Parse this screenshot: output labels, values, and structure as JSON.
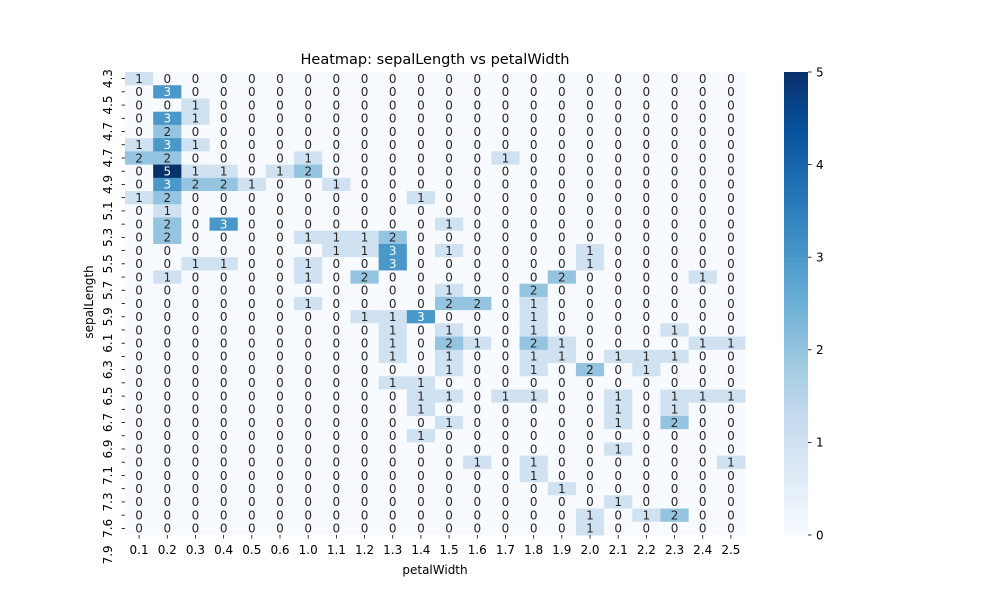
{
  "chart_data": {
    "type": "heatmap",
    "title": "Heatmap: sepalLength vs petalWidth",
    "xlabel": "petalWidth",
    "ylabel": "sepalLength",
    "x_categories": [
      "0.1",
      "0.2",
      "0.3",
      "0.4",
      "0.5",
      "0.6",
      "1.0",
      "1.1",
      "1.2",
      "1.3",
      "1.4",
      "1.5",
      "1.6",
      "1.7",
      "1.8",
      "1.9",
      "2.0",
      "2.1",
      "2.2",
      "2.3",
      "2.4",
      "2.5"
    ],
    "y_tick_labels": [
      "4.3",
      "4.5",
      "4.7",
      "4.7",
      "4.9",
      "5.1",
      "5.3",
      "5.5",
      "5.7",
      "5.9",
      "6.1",
      "6.3",
      "6.5",
      "6.7",
      "6.9",
      "7.1",
      "7.3",
      "7.6",
      "7.9"
    ],
    "values": [
      [
        1,
        0,
        0,
        0,
        0,
        0,
        0,
        0,
        0,
        0,
        0,
        0,
        0,
        0,
        0,
        0,
        0,
        0,
        0,
        0,
        0,
        0
      ],
      [
        0,
        3,
        0,
        0,
        0,
        0,
        0,
        0,
        0,
        0,
        0,
        0,
        0,
        0,
        0,
        0,
        0,
        0,
        0,
        0,
        0,
        0
      ],
      [
        0,
        0,
        1,
        0,
        0,
        0,
        0,
        0,
        0,
        0,
        0,
        0,
        0,
        0,
        0,
        0,
        0,
        0,
        0,
        0,
        0,
        0
      ],
      [
        0,
        3,
        1,
        0,
        0,
        0,
        0,
        0,
        0,
        0,
        0,
        0,
        0,
        0,
        0,
        0,
        0,
        0,
        0,
        0,
        0,
        0
      ],
      [
        0,
        2,
        0,
        0,
        0,
        0,
        0,
        0,
        0,
        0,
        0,
        0,
        0,
        0,
        0,
        0,
        0,
        0,
        0,
        0,
        0,
        0
      ],
      [
        1,
        3,
        1,
        0,
        0,
        0,
        0,
        0,
        0,
        0,
        0,
        0,
        0,
        0,
        0,
        0,
        0,
        0,
        0,
        0,
        0,
        0
      ],
      [
        2,
        2,
        0,
        0,
        0,
        0,
        1,
        0,
        0,
        0,
        0,
        0,
        0,
        1,
        0,
        0,
        0,
        0,
        0,
        0,
        0,
        0
      ],
      [
        0,
        5,
        1,
        1,
        0,
        1,
        2,
        0,
        0,
        0,
        0,
        0,
        0,
        0,
        0,
        0,
        0,
        0,
        0,
        0,
        0,
        0
      ],
      [
        0,
        3,
        2,
        2,
        1,
        0,
        0,
        1,
        0,
        0,
        0,
        0,
        0,
        0,
        0,
        0,
        0,
        0,
        0,
        0,
        0,
        0
      ],
      [
        1,
        2,
        0,
        0,
        0,
        0,
        0,
        0,
        0,
        0,
        1,
        0,
        0,
        0,
        0,
        0,
        0,
        0,
        0,
        0,
        0,
        0
      ],
      [
        0,
        1,
        0,
        0,
        0,
        0,
        0,
        0,
        0,
        0,
        0,
        0,
        0,
        0,
        0,
        0,
        0,
        0,
        0,
        0,
        0,
        0
      ],
      [
        0,
        2,
        0,
        3,
        0,
        0,
        0,
        0,
        0,
        0,
        0,
        1,
        0,
        0,
        0,
        0,
        0,
        0,
        0,
        0,
        0,
        0
      ],
      [
        0,
        2,
        0,
        0,
        0,
        0,
        1,
        1,
        1,
        2,
        0,
        0,
        0,
        0,
        0,
        0,
        0,
        0,
        0,
        0,
        0,
        0
      ],
      [
        0,
        0,
        0,
        0,
        0,
        0,
        0,
        1,
        1,
        3,
        0,
        1,
        0,
        0,
        0,
        0,
        1,
        0,
        0,
        0,
        0,
        0
      ],
      [
        0,
        0,
        1,
        1,
        0,
        0,
        1,
        0,
        0,
        3,
        0,
        0,
        0,
        0,
        0,
        0,
        1,
        0,
        0,
        0,
        0,
        0
      ],
      [
        0,
        1,
        0,
        0,
        0,
        0,
        1,
        0,
        2,
        0,
        0,
        0,
        0,
        0,
        0,
        2,
        0,
        0,
        0,
        0,
        1,
        0
      ],
      [
        0,
        0,
        0,
        0,
        0,
        0,
        0,
        0,
        0,
        0,
        0,
        1,
        0,
        0,
        2,
        0,
        0,
        0,
        0,
        0,
        0,
        0
      ],
      [
        0,
        0,
        0,
        0,
        0,
        0,
        1,
        0,
        0,
        0,
        0,
        2,
        2,
        0,
        1,
        0,
        0,
        0,
        0,
        0,
        0,
        0
      ],
      [
        0,
        0,
        0,
        0,
        0,
        0,
        0,
        0,
        1,
        1,
        3,
        0,
        0,
        0,
        1,
        0,
        0,
        0,
        0,
        0,
        0,
        0
      ],
      [
        0,
        0,
        0,
        0,
        0,
        0,
        0,
        0,
        0,
        1,
        0,
        1,
        0,
        0,
        1,
        0,
        0,
        0,
        0,
        1,
        0,
        0
      ],
      [
        0,
        0,
        0,
        0,
        0,
        0,
        0,
        0,
        0,
        1,
        0,
        2,
        1,
        0,
        2,
        1,
        0,
        0,
        0,
        0,
        1,
        1
      ],
      [
        0,
        0,
        0,
        0,
        0,
        0,
        0,
        0,
        0,
        1,
        0,
        1,
        0,
        0,
        1,
        1,
        0,
        1,
        1,
        1,
        0,
        0
      ],
      [
        0,
        0,
        0,
        0,
        0,
        0,
        0,
        0,
        0,
        0,
        0,
        1,
        0,
        0,
        1,
        0,
        2,
        0,
        1,
        0,
        0,
        0
      ],
      [
        0,
        0,
        0,
        0,
        0,
        0,
        0,
        0,
        0,
        1,
        1,
        0,
        0,
        0,
        0,
        0,
        0,
        0,
        0,
        0,
        0,
        0
      ],
      [
        0,
        0,
        0,
        0,
        0,
        0,
        0,
        0,
        0,
        0,
        1,
        1,
        0,
        1,
        1,
        0,
        0,
        1,
        0,
        1,
        1,
        1
      ],
      [
        0,
        0,
        0,
        0,
        0,
        0,
        0,
        0,
        0,
        0,
        1,
        0,
        0,
        0,
        0,
        0,
        0,
        1,
        0,
        1,
        0,
        0
      ],
      [
        0,
        0,
        0,
        0,
        0,
        0,
        0,
        0,
        0,
        0,
        0,
        1,
        0,
        0,
        0,
        0,
        0,
        1,
        0,
        2,
        0,
        0
      ],
      [
        0,
        0,
        0,
        0,
        0,
        0,
        0,
        0,
        0,
        0,
        1,
        0,
        0,
        0,
        0,
        0,
        0,
        0,
        0,
        0,
        0,
        0
      ],
      [
        0,
        0,
        0,
        0,
        0,
        0,
        0,
        0,
        0,
        0,
        0,
        0,
        0,
        0,
        0,
        0,
        0,
        1,
        0,
        0,
        0,
        0
      ],
      [
        0,
        0,
        0,
        0,
        0,
        0,
        0,
        0,
        0,
        0,
        0,
        0,
        1,
        0,
        1,
        0,
        0,
        0,
        0,
        0,
        0,
        1
      ],
      [
        0,
        0,
        0,
        0,
        0,
        0,
        0,
        0,
        0,
        0,
        0,
        0,
        0,
        0,
        1,
        0,
        0,
        0,
        0,
        0,
        0,
        0
      ],
      [
        0,
        0,
        0,
        0,
        0,
        0,
        0,
        0,
        0,
        0,
        0,
        0,
        0,
        0,
        0,
        1,
        0,
        0,
        0,
        0,
        0,
        0
      ],
      [
        0,
        0,
        0,
        0,
        0,
        0,
        0,
        0,
        0,
        0,
        0,
        0,
        0,
        0,
        0,
        0,
        0,
        1,
        0,
        0,
        0,
        0
      ],
      [
        0,
        0,
        0,
        0,
        0,
        0,
        0,
        0,
        0,
        0,
        0,
        0,
        0,
        0,
        0,
        0,
        1,
        0,
        1,
        2,
        0,
        0
      ],
      [
        0,
        0,
        0,
        0,
        0,
        0,
        0,
        0,
        0,
        0,
        0,
        0,
        0,
        0,
        0,
        0,
        1,
        0,
        0,
        0,
        0,
        0
      ]
    ],
    "colorbar": {
      "min": 0,
      "max": 5,
      "ticks": [
        0,
        1,
        2,
        3,
        4,
        5
      ],
      "colormap": "Blues",
      "stops": [
        "#f7fbff",
        "#deebf7",
        "#c6dbef",
        "#9ecae1",
        "#6baed6",
        "#4292c6",
        "#2171b5",
        "#08519c",
        "#08306b"
      ]
    },
    "grid": false
  }
}
